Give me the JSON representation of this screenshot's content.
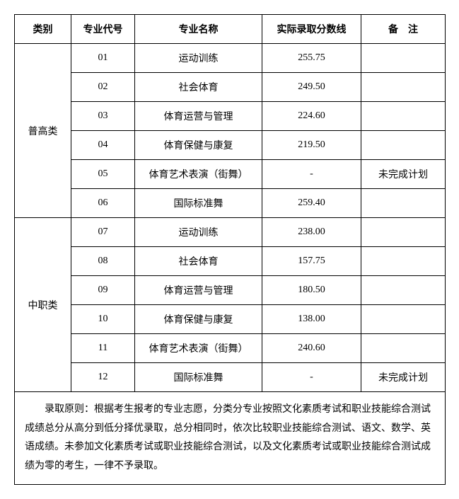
{
  "headers": {
    "col1": "类别",
    "col2": "专业代号",
    "col3": "专业名称",
    "col4": "实际录取分数线",
    "col5": "备　注"
  },
  "categories": [
    {
      "name": "普高类"
    },
    {
      "name": "中职类"
    }
  ],
  "rows": [
    {
      "code": "01",
      "major": "运动训练",
      "score": "255.75",
      "remark": ""
    },
    {
      "code": "02",
      "major": "社会体育",
      "score": "249.50",
      "remark": ""
    },
    {
      "code": "03",
      "major": "体育运营与管理",
      "score": "224.60",
      "remark": ""
    },
    {
      "code": "04",
      "major": "体育保健与康复",
      "score": "219.50",
      "remark": ""
    },
    {
      "code": "05",
      "major": "体育艺术表演（街舞）",
      "score": "-",
      "remark": "未完成计划"
    },
    {
      "code": "06",
      "major": "国际标准舞",
      "score": "259.40",
      "remark": ""
    },
    {
      "code": "07",
      "major": "运动训练",
      "score": "238.00",
      "remark": ""
    },
    {
      "code": "08",
      "major": "社会体育",
      "score": "157.75",
      "remark": ""
    },
    {
      "code": "09",
      "major": "体育运营与管理",
      "score": "180.50",
      "remark": ""
    },
    {
      "code": "10",
      "major": "体育保健与康复",
      "score": "138.00",
      "remark": ""
    },
    {
      "code": "11",
      "major": "体育艺术表演（街舞）",
      "score": "240.60",
      "remark": ""
    },
    {
      "code": "12",
      "major": "国际标准舞",
      "score": "-",
      "remark": "未完成计划"
    }
  ],
  "note": "　　录取原则：根据考生报考的专业志愿，分类分专业按照文化素质考试和职业技能综合测试成绩总分从高分到低分择优录取，总分相同时，依次比较职业技能综合测试、语文、数学、英语成绩。未参加文化素质考试或职业技能综合测试，以及文化素质考试或职业技能综合测试成绩为零的考生，一律不予录取。"
}
